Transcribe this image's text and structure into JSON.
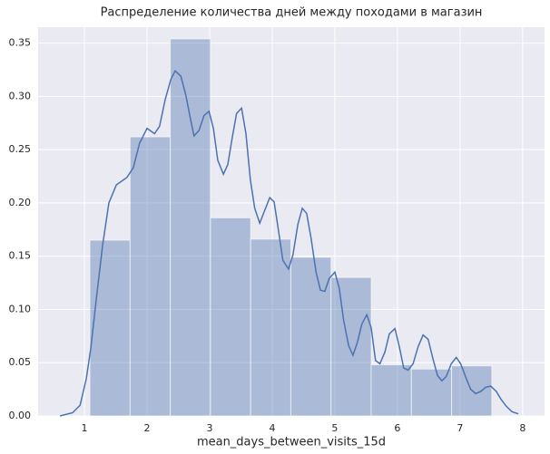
{
  "chart_data": {
    "type": "histogram",
    "title": "Распределение количества дней между походами в магазин",
    "xlabel": "mean_days_between_visits_15d",
    "bins": [
      1.087,
      1.729,
      2.371,
      3.013,
      3.655,
      4.297,
      4.939,
      5.581,
      6.223,
      6.865,
      7.507
    ],
    "values": [
      0.165,
      0.262,
      0.354,
      0.186,
      0.166,
      0.149,
      0.13,
      0.048,
      0.044,
      0.047
    ],
    "color": "#4c72b0",
    "kde": {
      "color": "#4c72b0",
      "x": [
        0.61,
        0.81,
        0.93,
        1.03,
        1.1,
        1.19,
        1.29,
        1.39,
        1.51,
        1.68,
        1.78,
        1.88,
        2.0,
        2.12,
        2.2,
        2.29,
        2.38,
        2.45,
        2.54,
        2.62,
        2.7,
        2.75,
        2.83,
        2.91,
        2.99,
        3.06,
        3.13,
        3.22,
        3.29,
        3.36,
        3.43,
        3.51,
        3.58,
        3.65,
        3.72,
        3.8,
        3.88,
        3.96,
        4.03,
        4.1,
        4.17,
        4.26,
        4.33,
        4.41,
        4.48,
        4.55,
        4.62,
        4.7,
        4.77,
        4.84,
        4.91,
        5.0,
        5.07,
        5.14,
        5.22,
        5.29,
        5.36,
        5.43,
        5.51,
        5.58,
        5.65,
        5.72,
        5.8,
        5.87,
        5.96,
        6.03,
        6.1,
        6.17,
        6.25,
        6.33,
        6.41,
        6.49,
        6.57,
        6.64,
        6.71,
        6.78,
        6.86,
        6.94,
        7.01,
        7.1,
        7.17,
        7.25,
        7.33,
        7.41,
        7.49,
        7.58,
        7.65,
        7.74,
        7.83,
        7.93
      ],
      "values": [
        0,
        0.003,
        0.01,
        0.035,
        0.063,
        0.11,
        0.16,
        0.2,
        0.217,
        0.224,
        0.233,
        0.256,
        0.27,
        0.265,
        0.272,
        0.297,
        0.316,
        0.324,
        0.319,
        0.301,
        0.277,
        0.263,
        0.268,
        0.282,
        0.286,
        0.27,
        0.24,
        0.227,
        0.236,
        0.261,
        0.284,
        0.289,
        0.265,
        0.222,
        0.195,
        0.181,
        0.193,
        0.205,
        0.201,
        0.174,
        0.146,
        0.138,
        0.151,
        0.18,
        0.195,
        0.19,
        0.167,
        0.135,
        0.118,
        0.117,
        0.129,
        0.135,
        0.12,
        0.09,
        0.066,
        0.057,
        0.069,
        0.086,
        0.095,
        0.083,
        0.052,
        0.049,
        0.06,
        0.077,
        0.082,
        0.065,
        0.045,
        0.043,
        0.049,
        0.065,
        0.076,
        0.072,
        0.053,
        0.038,
        0.033,
        0.037,
        0.049,
        0.055,
        0.049,
        0.035,
        0.025,
        0.021,
        0.023,
        0.027,
        0.028,
        0.023,
        0.016,
        0.009,
        0.004,
        0.002
      ]
    },
    "xlim": [
      0.26,
      8.35
    ],
    "ylim": [
      0,
      0.365
    ],
    "xticks": [
      1,
      2,
      3,
      4,
      5,
      6,
      7,
      8
    ],
    "yticks": [
      {
        "value": 0,
        "label": "0.00"
      },
      {
        "value": 0.05,
        "label": "0.05"
      },
      {
        "value": 0.1,
        "label": "0.10"
      },
      {
        "value": 0.15,
        "label": "0.15"
      },
      {
        "value": 0.2,
        "label": "0.20"
      },
      {
        "value": 0.25,
        "label": "0.25"
      },
      {
        "value": 0.3,
        "label": "0.30"
      },
      {
        "value": 0.35,
        "label": "0.35"
      }
    ],
    "grid": true
  }
}
